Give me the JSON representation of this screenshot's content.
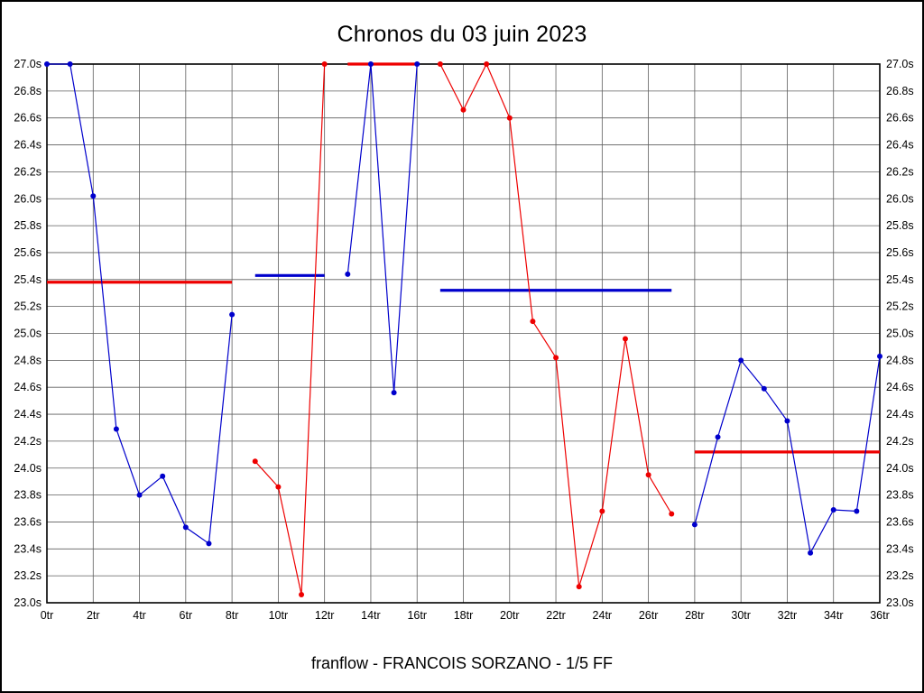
{
  "page": {
    "title": "Chronos du 03 juin 2023",
    "caption": "franflow - FRANCOIS SORZANO - 1/5 FF"
  },
  "chart_data": {
    "type": "line",
    "title": "Chronos du 03 juin 2023",
    "xlabel": "",
    "ylabel": "",
    "xlim": [
      0,
      36
    ],
    "ylim": [
      23.0,
      27.0
    ],
    "x_tick_step": 2,
    "y_tick_step": 0.2,
    "grid": true,
    "x_unit": "tr",
    "y_unit": "s",
    "x_tick_labels": [
      "0tr",
      "2tr",
      "4tr",
      "6tr",
      "8tr",
      "10tr",
      "12tr",
      "14tr",
      "16tr",
      "18tr",
      "20tr",
      "22tr",
      "24tr",
      "26tr",
      "28tr",
      "30tr",
      "32tr",
      "34tr",
      "36tr"
    ],
    "y_tick_labels": [
      "27.0s",
      "26.8s",
      "26.6s",
      "26.4s",
      "26.2s",
      "26.0s",
      "25.8s",
      "25.6s",
      "25.4s",
      "25.2s",
      "25.0s",
      "24.8s",
      "24.6s",
      "24.4s",
      "24.2s",
      "24.0s",
      "23.8s",
      "23.6s",
      "23.4s",
      "23.2s",
      "23.0s"
    ],
    "colors": {
      "blue": "#0000cc",
      "red": "#ee0000"
    },
    "series": [
      {
        "name": "stint-1-laps",
        "kind": "line",
        "color": "blue",
        "x": [
          0,
          1,
          2,
          3,
          4,
          5,
          6,
          7,
          8
        ],
        "y": [
          27.0,
          27.0,
          26.02,
          24.29,
          23.8,
          23.94,
          23.56,
          23.44,
          25.14
        ]
      },
      {
        "name": "stint-1-average",
        "kind": "hline",
        "color": "red",
        "x": [
          0,
          8
        ],
        "y": 25.38
      },
      {
        "name": "stint-2-laps",
        "kind": "line",
        "color": "red",
        "x": [
          9,
          10,
          11,
          12
        ],
        "y": [
          24.05,
          23.86,
          23.06,
          27.0
        ]
      },
      {
        "name": "stint-2-average",
        "kind": "hline",
        "color": "blue",
        "x": [
          9,
          12
        ],
        "y": 25.43
      },
      {
        "name": "stint-3-laps",
        "kind": "line",
        "color": "blue",
        "x": [
          13,
          14,
          15,
          16
        ],
        "y": [
          25.44,
          27.0,
          24.56,
          27.0
        ]
      },
      {
        "name": "stint-3-average",
        "kind": "hline",
        "color": "red",
        "x": [
          13,
          16
        ],
        "y": 27.0
      },
      {
        "name": "stint-4-laps",
        "kind": "line",
        "color": "red",
        "x": [
          17,
          18,
          19,
          20,
          21,
          22,
          23,
          24,
          25,
          26,
          27
        ],
        "y": [
          27.0,
          26.66,
          27.0,
          26.6,
          25.09,
          24.82,
          23.12,
          23.68,
          24.96,
          23.95,
          23.66
        ]
      },
      {
        "name": "stint-4-average",
        "kind": "hline",
        "color": "blue",
        "x": [
          17,
          27
        ],
        "y": 25.32
      },
      {
        "name": "stint-5-laps",
        "kind": "line",
        "color": "blue",
        "x": [
          28,
          29,
          30,
          31,
          32,
          33,
          34,
          35,
          36
        ],
        "y": [
          23.58,
          24.23,
          24.8,
          24.59,
          24.35,
          23.37,
          23.69,
          23.68,
          24.83
        ]
      },
      {
        "name": "stint-5-average",
        "kind": "hline",
        "color": "red",
        "x": [
          28,
          36
        ],
        "y": 24.12
      }
    ]
  }
}
